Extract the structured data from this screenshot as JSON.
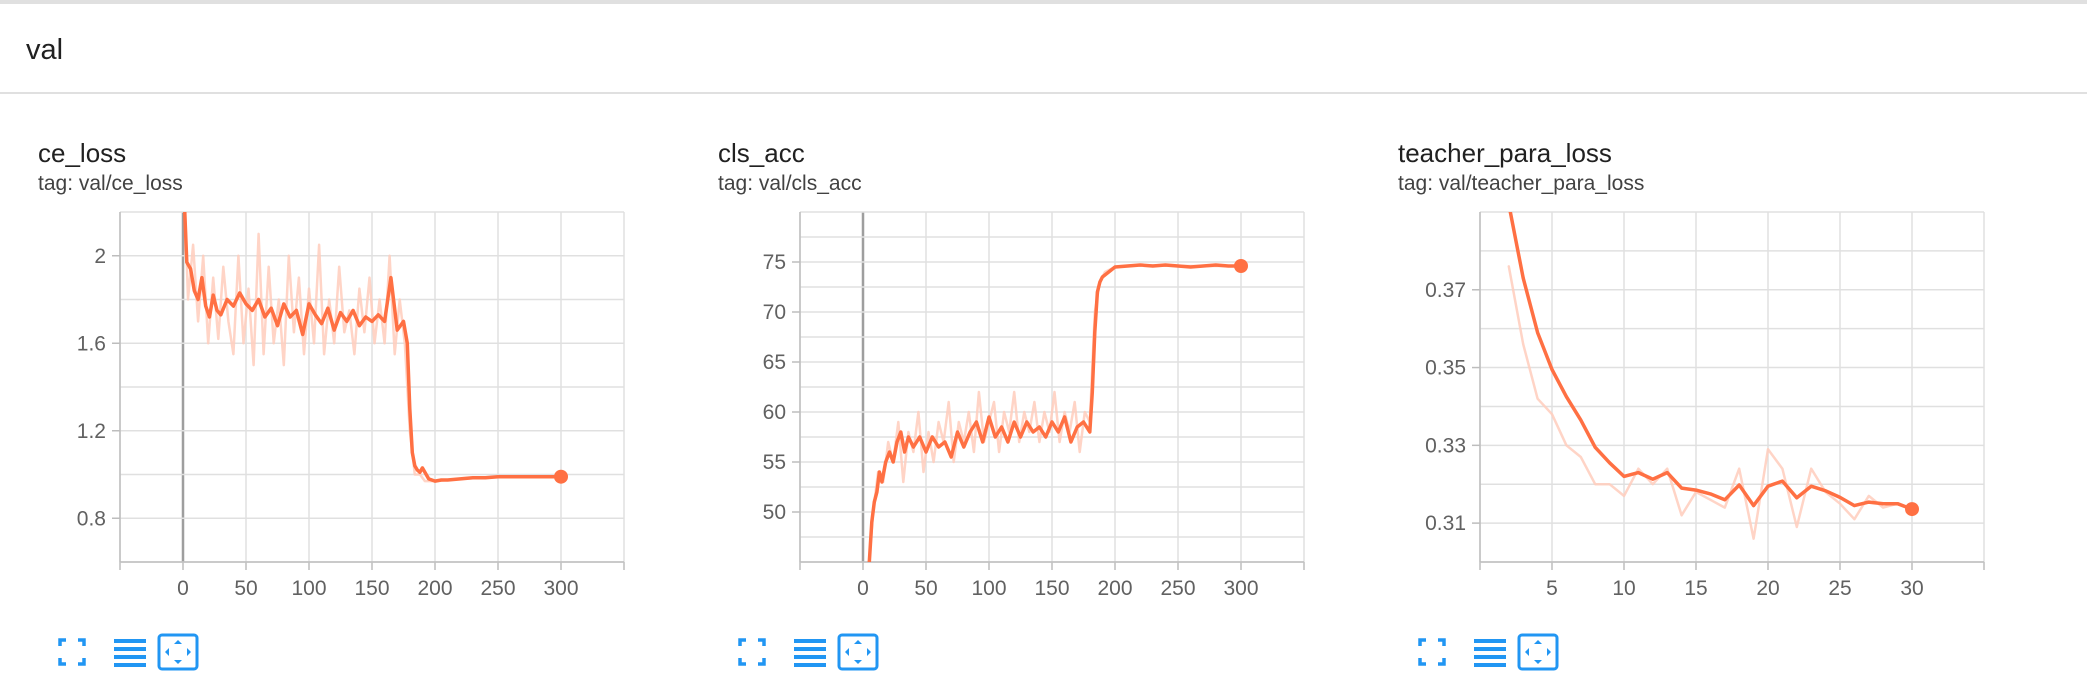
{
  "group": {
    "title": "val"
  },
  "colors": {
    "line": "#ff7043",
    "raw": "#ffccbc",
    "grid": "#e0e0e0",
    "zero": "#9e9e9e",
    "icon": "#2196f3"
  },
  "icons": [
    "fit-domain-icon",
    "toggle-log-icon",
    "expand-chart-icon"
  ],
  "chart_data": [
    {
      "type": "line",
      "title": "ce_loss",
      "tag": "tag: val/ce_loss",
      "xlim": [
        -50,
        350
      ],
      "ylim": [
        0.6,
        2.2
      ],
      "xticks": [
        0,
        50,
        100,
        150,
        200,
        250,
        300
      ],
      "yticks": [
        0.8,
        1.2,
        1.6,
        2
      ],
      "ytick_labels": [
        "0.8",
        "1.2",
        "1.6",
        "2"
      ],
      "series": [
        {
          "style": "smoothed",
          "x": [
            0,
            3,
            6,
            9,
            12,
            15,
            18,
            21,
            24,
            27,
            30,
            35,
            40,
            45,
            50,
            55,
            60,
            65,
            70,
            75,
            80,
            85,
            90,
            95,
            100,
            105,
            110,
            115,
            120,
            125,
            130,
            135,
            140,
            145,
            150,
            155,
            160,
            165,
            170,
            175,
            178,
            180,
            182,
            184,
            186,
            188,
            190,
            195,
            200,
            205,
            210,
            220,
            230,
            240,
            250,
            260,
            270,
            280,
            290,
            300
          ],
          "y": [
            2.4,
            1.97,
            1.94,
            1.84,
            1.8,
            1.9,
            1.77,
            1.72,
            1.82,
            1.75,
            1.73,
            1.8,
            1.77,
            1.83,
            1.78,
            1.75,
            1.8,
            1.72,
            1.76,
            1.68,
            1.78,
            1.72,
            1.75,
            1.64,
            1.78,
            1.73,
            1.69,
            1.76,
            1.66,
            1.74,
            1.7,
            1.75,
            1.68,
            1.72,
            1.7,
            1.73,
            1.7,
            1.9,
            1.66,
            1.7,
            1.6,
            1.3,
            1.1,
            1.04,
            1.02,
            1.01,
            1.03,
            0.98,
            0.97,
            0.975,
            0.975,
            0.98,
            0.985,
            0.985,
            0.99,
            0.99,
            0.99,
            0.99,
            0.99,
            0.99
          ]
        },
        {
          "style": "raw",
          "x": [
            0,
            4,
            8,
            12,
            16,
            20,
            24,
            28,
            32,
            36,
            40,
            44,
            48,
            52,
            56,
            60,
            64,
            68,
            72,
            76,
            80,
            84,
            88,
            92,
            96,
            100,
            104,
            108,
            112,
            116,
            120,
            124,
            128,
            132,
            136,
            140,
            144,
            148,
            152,
            156,
            160,
            164,
            168,
            172,
            176,
            180,
            184,
            188,
            192,
            200,
            220,
            250,
            300
          ],
          "y": [
            2.5,
            1.8,
            2.05,
            1.7,
            2.0,
            1.6,
            1.9,
            1.62,
            1.95,
            1.7,
            1.55,
            2.0,
            1.6,
            1.85,
            1.5,
            2.1,
            1.55,
            1.95,
            1.6,
            1.8,
            1.5,
            2.0,
            1.65,
            1.9,
            1.55,
            1.85,
            1.6,
            2.05,
            1.55,
            1.8,
            1.6,
            1.95,
            1.65,
            1.75,
            1.55,
            1.85,
            1.65,
            1.9,
            1.6,
            1.8,
            1.6,
            2.0,
            1.55,
            1.8,
            1.6,
            1.2,
            1.0,
            1.0,
            0.97,
            0.97,
            0.98,
            0.99,
            0.99
          ]
        }
      ],
      "endpoint": {
        "x": 300,
        "y": 0.99
      }
    },
    {
      "type": "line",
      "title": "cls_acc",
      "tag": "tag: val/cls_acc",
      "xlim": [
        -50,
        350
      ],
      "ylim": [
        45,
        80
      ],
      "xticks": [
        0,
        50,
        100,
        150,
        200,
        250,
        300
      ],
      "yticks": [
        50,
        55,
        60,
        65,
        70,
        75
      ],
      "ytick_labels": [
        "50",
        "55",
        "60",
        "65",
        "70",
        "75"
      ],
      "series": [
        {
          "style": "smoothed",
          "x": [
            5,
            7,
            9,
            11,
            13,
            15,
            18,
            21,
            24,
            27,
            30,
            33,
            36,
            40,
            45,
            50,
            55,
            60,
            65,
            70,
            75,
            80,
            85,
            90,
            95,
            100,
            105,
            110,
            115,
            120,
            125,
            130,
            135,
            140,
            145,
            150,
            155,
            160,
            165,
            170,
            175,
            180,
            182,
            184,
            186,
            188,
            190,
            195,
            200,
            210,
            220,
            230,
            240,
            250,
            260,
            270,
            280,
            290,
            300
          ],
          "y": [
            45,
            49,
            51,
            52,
            54,
            53,
            55,
            56,
            55,
            57,
            58,
            56,
            57.5,
            56.5,
            57.5,
            56,
            57.5,
            56.5,
            57,
            55.5,
            58,
            56.5,
            58,
            59,
            57,
            59.5,
            57.5,
            58.5,
            57,
            59,
            57.5,
            59,
            58,
            58.5,
            57.5,
            59,
            58,
            59.5,
            57,
            58.5,
            59,
            58,
            62,
            68,
            72,
            73,
            73.5,
            74,
            74.5,
            74.6,
            74.7,
            74.6,
            74.7,
            74.6,
            74.5,
            74.6,
            74.7,
            74.6,
            74.6
          ]
        },
        {
          "style": "raw",
          "x": [
            5,
            8,
            12,
            16,
            20,
            24,
            28,
            32,
            36,
            40,
            44,
            48,
            52,
            56,
            60,
            64,
            68,
            72,
            76,
            80,
            84,
            88,
            92,
            96,
            100,
            104,
            108,
            112,
            116,
            120,
            124,
            128,
            132,
            136,
            140,
            144,
            148,
            152,
            156,
            160,
            164,
            168,
            172,
            176,
            180,
            184,
            188,
            192,
            200,
            220,
            250,
            300
          ],
          "y": [
            45,
            50,
            54,
            53,
            57,
            55,
            59,
            53,
            58,
            56,
            60,
            54,
            58,
            55,
            59,
            57,
            61,
            55,
            59,
            57,
            60,
            56,
            62,
            57,
            59,
            61,
            56,
            60,
            58,
            62,
            57,
            60,
            58,
            61,
            57,
            60,
            58,
            62,
            57,
            60,
            58,
            61,
            56,
            60,
            59,
            70,
            73,
            74,
            74.5,
            74.7,
            74.6,
            74.6
          ]
        }
      ],
      "endpoint": {
        "x": 300,
        "y": 74.6
      }
    },
    {
      "type": "line",
      "title": "teacher_para_loss",
      "tag": "tag: val/teacher_para_loss",
      "xlim": [
        0,
        35
      ],
      "ylim": [
        0.3,
        0.39
      ],
      "xticks": [
        5,
        10,
        15,
        20,
        25,
        30
      ],
      "yticks": [
        0.31,
        0.33,
        0.35,
        0.37
      ],
      "ytick_labels": [
        "0.31",
        "0.33",
        "0.35",
        "0.37"
      ],
      "series": [
        {
          "style": "smoothed",
          "x": [
            2,
            3,
            4,
            5,
            6,
            7,
            8,
            9,
            10,
            11,
            12,
            13,
            14,
            15,
            16,
            17,
            18,
            19,
            20,
            21,
            22,
            23,
            24,
            25,
            26,
            27,
            28,
            29,
            30
          ],
          "y": [
            0.392,
            0.373,
            0.359,
            0.3495,
            0.3425,
            0.3365,
            0.3295,
            0.3255,
            0.322,
            0.323,
            0.3213,
            0.323,
            0.319,
            0.3185,
            0.3175,
            0.316,
            0.3198,
            0.3145,
            0.3195,
            0.3208,
            0.3165,
            0.3195,
            0.3183,
            0.3166,
            0.3145,
            0.3154,
            0.315,
            0.315,
            0.3136
          ]
        },
        {
          "style": "raw",
          "x": [
            2,
            3,
            4,
            5,
            6,
            7,
            8,
            9,
            10,
            11,
            12,
            13,
            14,
            15,
            16,
            17,
            18,
            19,
            20,
            21,
            22,
            23,
            24,
            25,
            26,
            27,
            28,
            29,
            30
          ],
          "y": [
            0.376,
            0.356,
            0.342,
            0.338,
            0.33,
            0.327,
            0.32,
            0.32,
            0.317,
            0.324,
            0.32,
            0.324,
            0.312,
            0.318,
            0.316,
            0.314,
            0.324,
            0.306,
            0.329,
            0.324,
            0.309,
            0.324,
            0.318,
            0.315,
            0.311,
            0.317,
            0.314,
            0.315,
            0.3136
          ]
        }
      ],
      "endpoint": {
        "x": 30,
        "y": 0.3136
      }
    }
  ]
}
